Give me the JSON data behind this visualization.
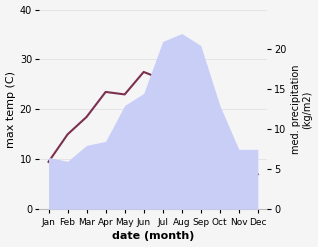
{
  "months": [
    "Jan",
    "Feb",
    "Mar",
    "Apr",
    "May",
    "Jun",
    "Jul",
    "Aug",
    "Sep",
    "Oct",
    "Nov",
    "Dec"
  ],
  "max_temp": [
    9.5,
    15.0,
    18.5,
    23.5,
    23.0,
    27.5,
    26.0,
    22.0,
    21.0,
    16.0,
    11.0,
    7.0
  ],
  "precipitation": [
    6.5,
    6.0,
    8.0,
    8.5,
    13.0,
    14.5,
    21.0,
    22.0,
    20.5,
    13.0,
    7.5,
    7.5
  ],
  "temp_color": "#7b3050",
  "precip_fill_color": "#c8cef5",
  "xlabel": "date (month)",
  "ylabel_left": "max temp (C)",
  "ylabel_right": "med. precipitation\n(kg/m2)",
  "ylim_left": [
    0,
    40
  ],
  "ylim_right": [
    0,
    25
  ],
  "yticks_left": [
    0,
    10,
    20,
    30,
    40
  ],
  "yticks_right": [
    0,
    5,
    10,
    15,
    20
  ],
  "xlim": [
    -0.5,
    11.5
  ]
}
